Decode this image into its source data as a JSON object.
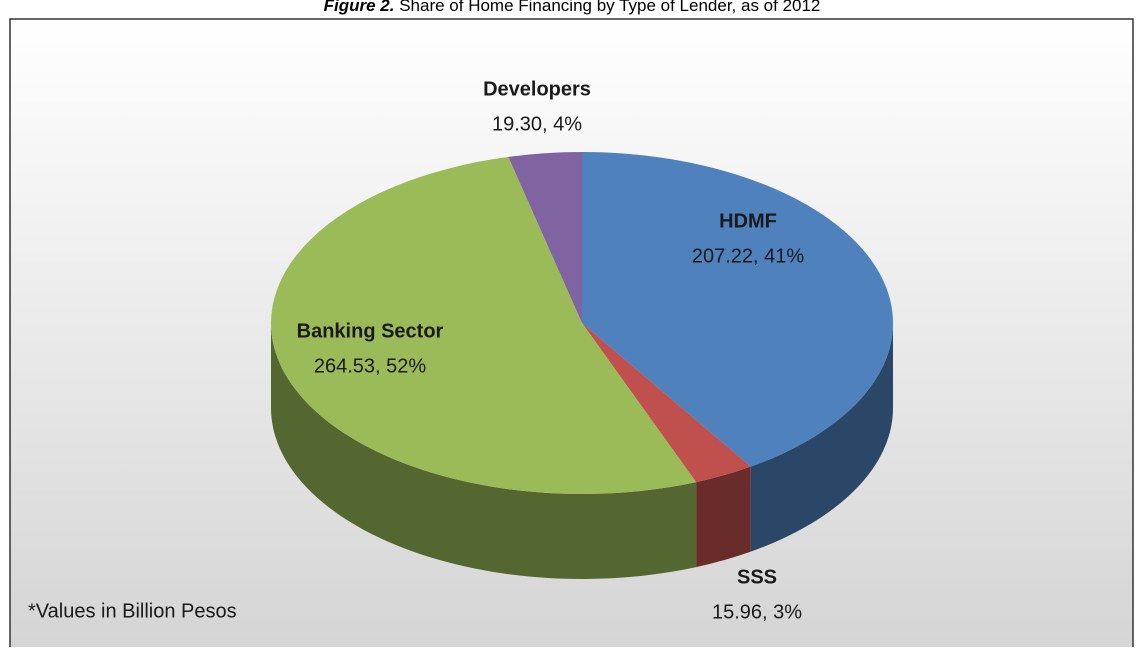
{
  "chart_data": {
    "type": "pie3d",
    "title_label": "Figure 2.",
    "title": "Share of Home Financing by Type of Lender, as of 2012",
    "note": "*Values in Billion Pesos",
    "categories": [
      "HDMF",
      "SSS",
      "Banking Sector",
      "Developers"
    ],
    "values": [
      207.22,
      15.96,
      264.53,
      19.3
    ],
    "value_labels": [
      "207.22, 41%",
      "15.96, 3%",
      "264.53, 52%",
      "19.30, 4%"
    ],
    "colors": [
      "#4f81bd",
      "#c0504d",
      "#9bbb59",
      "#8064a2"
    ]
  }
}
